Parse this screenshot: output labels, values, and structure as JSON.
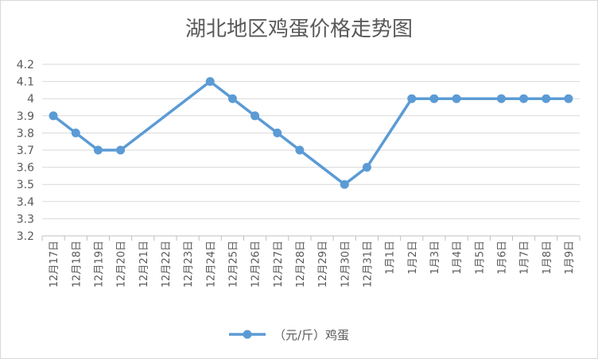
{
  "chart_data": {
    "type": "line",
    "title": "湖北地区鸡蛋价格走势图",
    "categories": [
      "12月17日",
      "12月18日",
      "12月19日",
      "12月20日",
      "12月21日",
      "12月22日",
      "12月23日",
      "12月24日",
      "12月25日",
      "12月26日",
      "12月27日",
      "12月28日",
      "12月29日",
      "12月30日",
      "12月31日",
      "1月1日",
      "1月2日",
      "1月3日",
      "1月4日",
      "1月5日",
      "1月6日",
      "1月7日",
      "1月8日",
      "1月9日"
    ],
    "series": [
      {
        "name": "（元/斤）鸡蛋",
        "color": "#5b9bd5",
        "values": [
          3.9,
          3.8,
          3.7,
          3.7,
          null,
          null,
          null,
          4.1,
          4.0,
          3.9,
          3.8,
          3.7,
          null,
          3.5,
          3.6,
          null,
          4.0,
          4.0,
          4.0,
          null,
          4.0,
          4.0,
          4.0,
          4.0
        ]
      }
    ],
    "ylim": [
      3.2,
      4.2
    ],
    "yticks": [
      "3.2",
      "3.3",
      "3.4",
      "3.5",
      "3.6",
      "3.7",
      "3.8",
      "3.9",
      "4",
      "4.1",
      "4.2"
    ],
    "grid": true,
    "legend": "bottom",
    "gap_handling": "connect"
  }
}
